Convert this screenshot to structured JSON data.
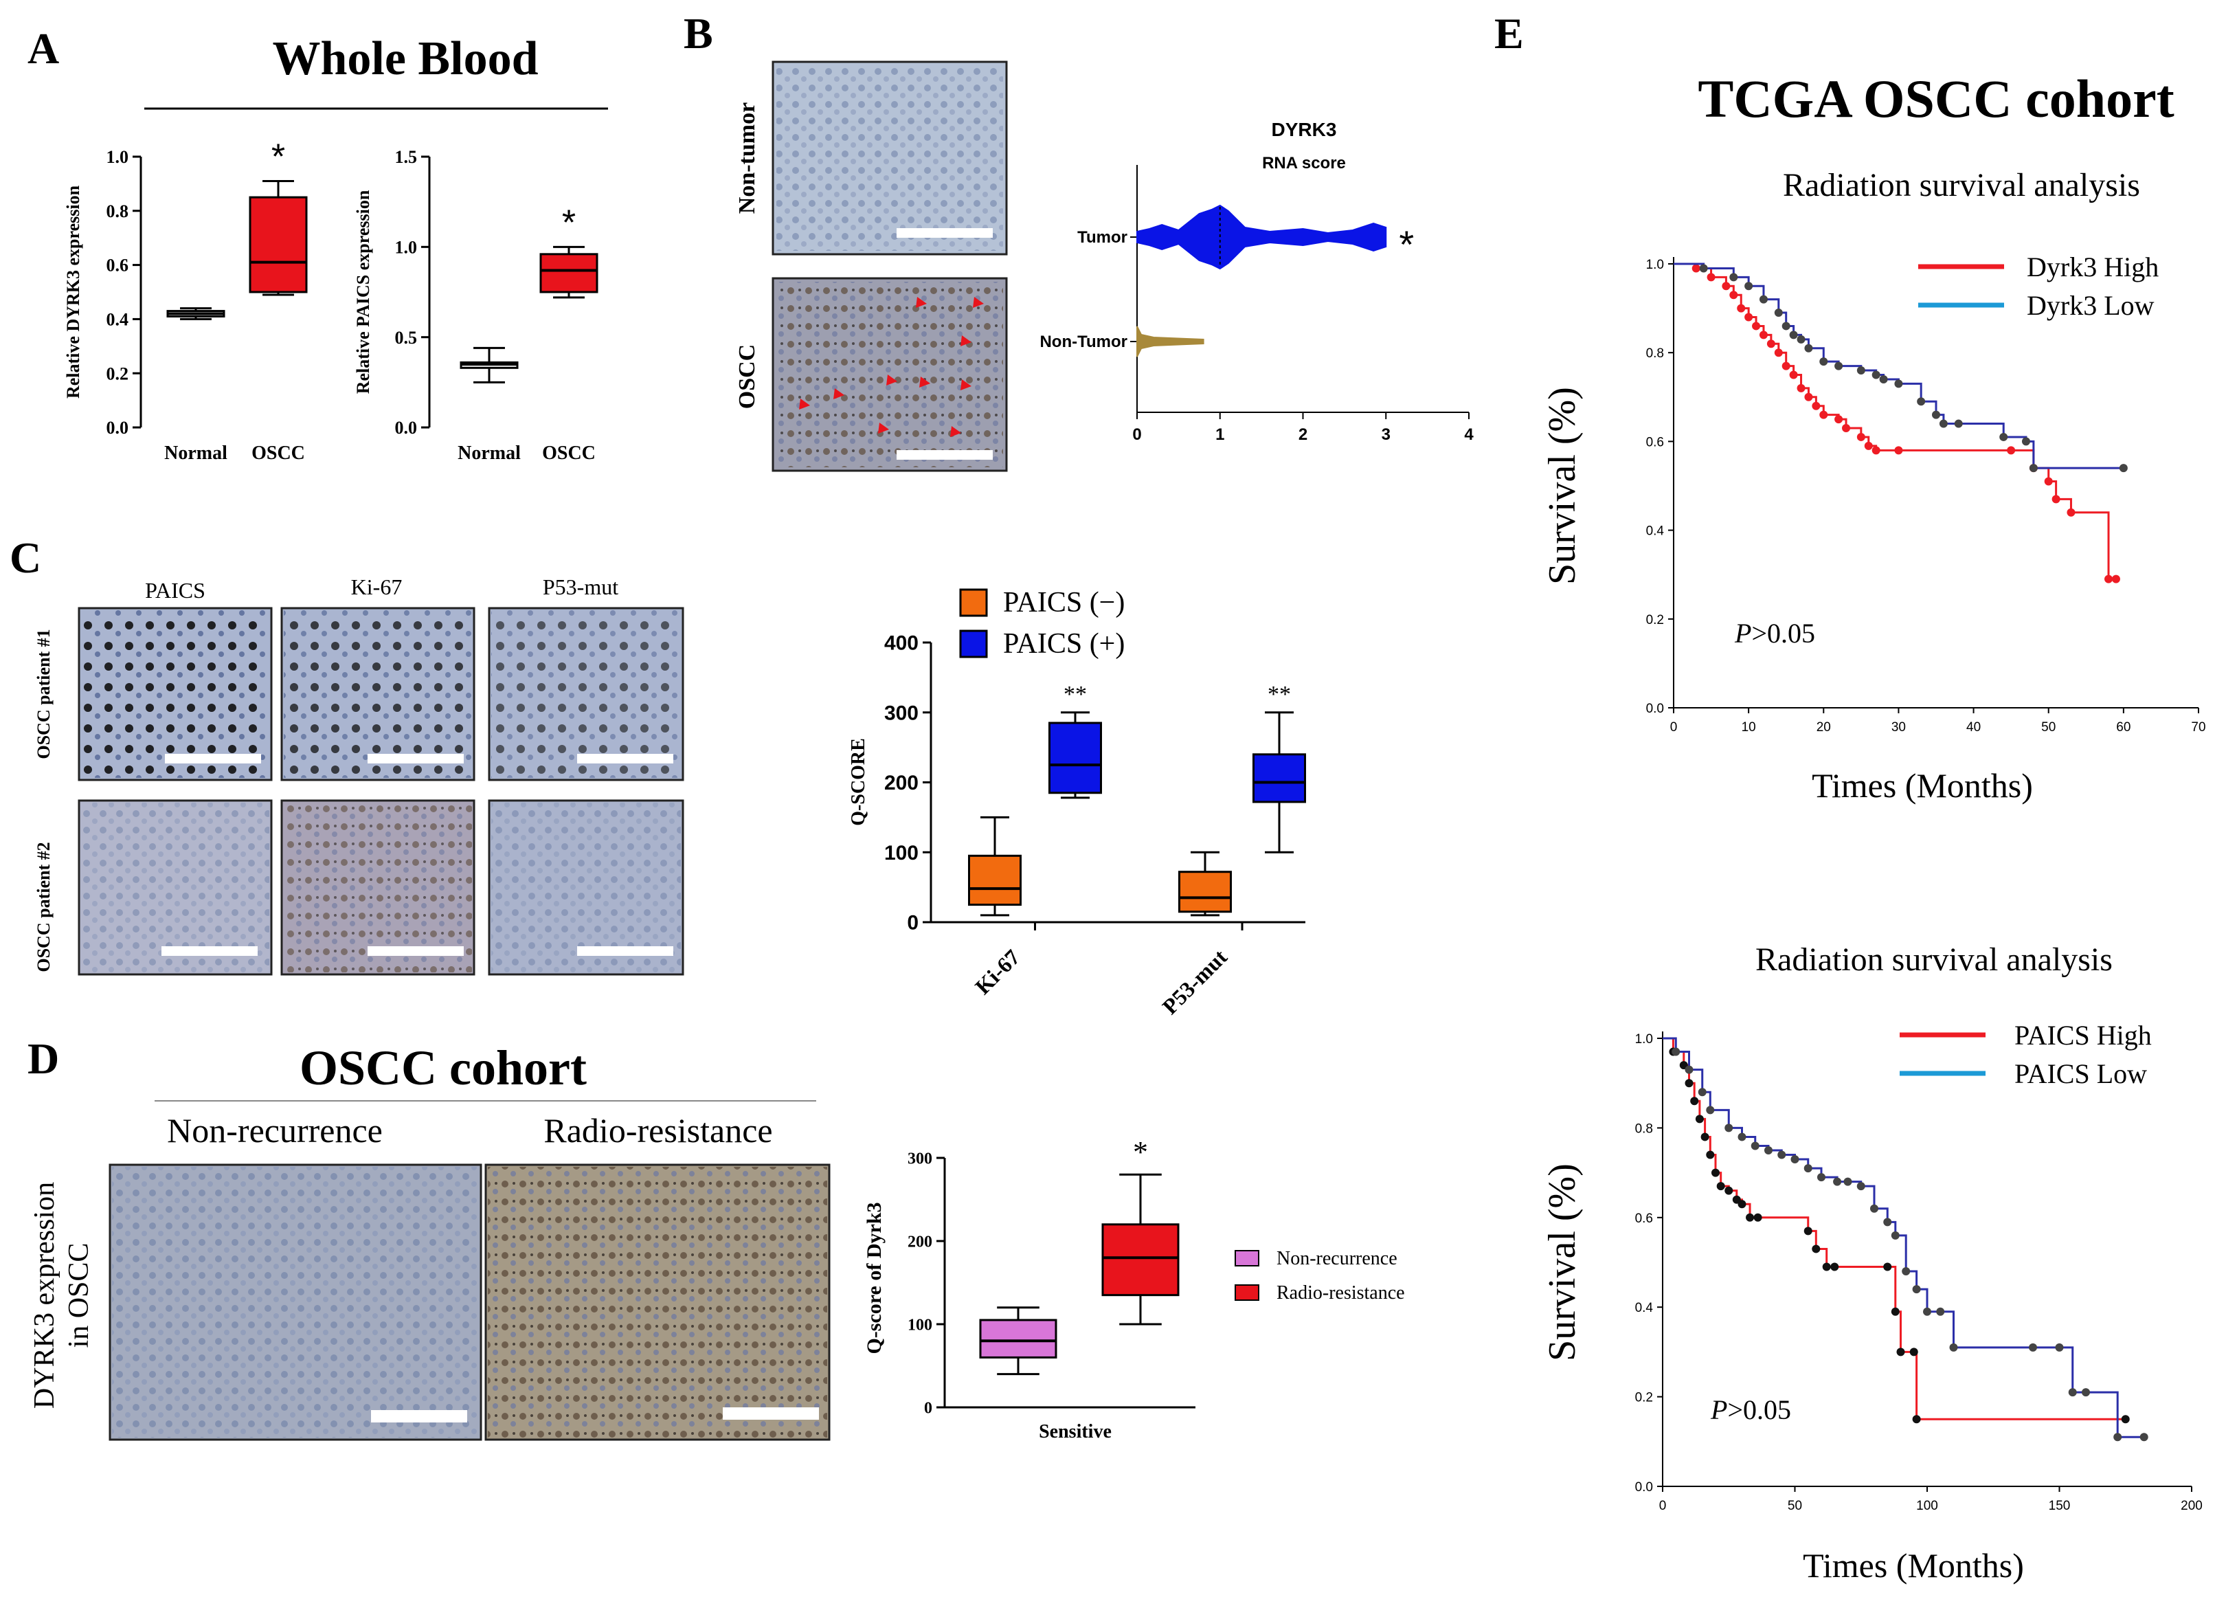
{
  "panels": {
    "A": {
      "letter": "A",
      "title": "Whole Blood"
    },
    "B": {
      "letter": "B",
      "row_labels": [
        "Non-tumor",
        "OSCC"
      ]
    },
    "C": {
      "letter": "C",
      "col_labels": [
        "PAICS",
        "Ki-67",
        "P53-mut"
      ],
      "row_labels": [
        "OSCC patient #1",
        "OSCC patient #2"
      ]
    },
    "D": {
      "letter": "D",
      "title": "OSCC cohort",
      "col_labels": [
        "Non-recurrence",
        "Radio-resistance"
      ],
      "side_label_1": "DYRK3 expression",
      "side_label_2": "in OSCC"
    },
    "E": {
      "letter": "E",
      "title": "TCGA OSCC cohort"
    }
  },
  "colors": {
    "red": "#e8141c",
    "blue": "#0a14e6",
    "orange": "#f26b0f",
    "olive": "#a8893a",
    "magenta": "#d876d8",
    "km_red": "#ee1c24",
    "km_blue": "#2b2fa8",
    "km_dark": "#444444"
  },
  "chart_data": [
    {
      "id": "A1",
      "type": "box",
      "title": "",
      "ylabel": "Relative DYRK3 expression",
      "ylim": [
        0,
        1.0
      ],
      "yticks": [
        "0.0",
        "0.2",
        "0.4",
        "0.6",
        "0.8",
        "1.0"
      ],
      "categories": [
        "Normal",
        "OSCC"
      ],
      "boxes": [
        {
          "min": 0.4,
          "q1": 0.41,
          "median": 0.42,
          "q3": 0.43,
          "max": 0.44,
          "fill": "none"
        },
        {
          "min": 0.49,
          "q1": 0.5,
          "median": 0.61,
          "q3": 0.85,
          "max": 0.91,
          "fill": "#e8141c"
        }
      ],
      "annotations": [
        "",
        "*"
      ]
    },
    {
      "id": "A2",
      "type": "box",
      "ylabel": "Relative PAICS expression",
      "ylim": [
        0,
        1.5
      ],
      "yticks": [
        "0.0",
        "0.5",
        "1.0",
        "1.5"
      ],
      "categories": [
        "Normal",
        "OSCC"
      ],
      "boxes": [
        {
          "min": 0.25,
          "q1": 0.33,
          "median": 0.35,
          "q3": 0.36,
          "max": 0.44,
          "fill": "none"
        },
        {
          "min": 0.72,
          "q1": 0.75,
          "median": 0.87,
          "q3": 0.96,
          "max": 1.0,
          "fill": "#e8141c"
        }
      ],
      "annotations": [
        "",
        "*"
      ]
    },
    {
      "id": "B",
      "type": "violin",
      "title": "DYRK3",
      "subtitle": "RNA score",
      "xlim": [
        0,
        4
      ],
      "xticks": [
        "0",
        "1",
        "2",
        "3",
        "4"
      ],
      "categories": [
        "Tumor",
        "Non-Tumor"
      ],
      "series": [
        {
          "name": "Tumor",
          "color": "#0a14e6",
          "range": [
            0,
            3
          ],
          "median": 1,
          "annotation": "*"
        },
        {
          "name": "Non-Tumor",
          "color": "#a8893a",
          "range": [
            0,
            0.8
          ],
          "median": 0
        }
      ]
    },
    {
      "id": "C",
      "type": "box",
      "ylabel": "Q-SCORE",
      "ylim": [
        0,
        400
      ],
      "yticks": [
        "0",
        "100",
        "200",
        "300",
        "400"
      ],
      "categories": [
        "Ki-67",
        "P53-mut"
      ],
      "legend": [
        "PAICS (−)",
        "PAICS (+)"
      ],
      "series": [
        {
          "name": "PAICS (−)",
          "color": "#f26b0f",
          "boxes": [
            {
              "min": 10,
              "q1": 25,
              "median": 48,
              "q3": 95,
              "max": 150
            },
            {
              "min": 10,
              "q1": 15,
              "median": 35,
              "q3": 72,
              "max": 100
            }
          ]
        },
        {
          "name": "PAICS (+)",
          "color": "#0a14e6",
          "boxes": [
            {
              "min": 178,
              "q1": 185,
              "median": 225,
              "q3": 285,
              "max": 300
            },
            {
              "min": 100,
              "q1": 172,
              "median": 200,
              "q3": 240,
              "max": 300
            }
          ]
        }
      ],
      "annotations": [
        "**",
        "**"
      ]
    },
    {
      "id": "D",
      "type": "box",
      "ylabel": "Q-score of Dyrk3",
      "xlabel": "Sensitive",
      "ylim": [
        0,
        300
      ],
      "yticks": [
        "0",
        "100",
        "200",
        "300"
      ],
      "legend": [
        "Non-recurrence",
        "Radio-resistance"
      ],
      "series": [
        {
          "name": "Non-recurrence",
          "color": "#d876d8",
          "box": {
            "min": 40,
            "q1": 60,
            "median": 80,
            "q3": 105,
            "max": 120
          }
        },
        {
          "name": "Radio-resistance",
          "color": "#e8141c",
          "box": {
            "min": 100,
            "q1": 135,
            "median": 180,
            "q3": 220,
            "max": 280
          }
        }
      ],
      "annotations": [
        "",
        "*"
      ]
    },
    {
      "id": "E1",
      "type": "line",
      "subtype": "kaplan-meier",
      "title": "Radiation survival analysis",
      "xlabel": "Times (Months)",
      "ylabel": "Survival (%)",
      "xlim": [
        0,
        70
      ],
      "ylim": [
        0,
        1.0
      ],
      "xticks": [
        "0",
        "10",
        "20",
        "30",
        "40",
        "50",
        "60",
        "70"
      ],
      "yticks": [
        "0.0",
        "0.2",
        "0.4",
        "0.6",
        "0.8",
        "1.0"
      ],
      "legend": [
        "Dyrk3 High",
        "Dyrk3 Low"
      ],
      "pvalue_p": "P",
      "pvalue_rest": ">0.05",
      "series": [
        {
          "name": "Dyrk3 High",
          "color": "#ee1c24",
          "x": [
            0,
            3,
            5,
            7,
            8,
            9,
            10,
            11,
            12,
            13,
            14,
            15,
            16,
            17,
            18,
            19,
            20,
            22,
            23,
            25,
            26,
            27,
            30,
            45,
            48,
            50,
            51,
            53,
            58,
            59
          ],
          "y": [
            1.0,
            0.99,
            0.97,
            0.95,
            0.93,
            0.9,
            0.88,
            0.86,
            0.84,
            0.82,
            0.8,
            0.77,
            0.75,
            0.72,
            0.7,
            0.68,
            0.66,
            0.65,
            0.63,
            0.61,
            0.59,
            0.58,
            0.58,
            0.58,
            0.54,
            0.51,
            0.47,
            0.44,
            0.29,
            0.29
          ]
        },
        {
          "name": "Dyrk3 Low",
          "color": "#2b2fa8",
          "x": [
            0,
            4,
            8,
            10,
            12,
            14,
            15,
            16,
            17,
            18,
            20,
            22,
            25,
            27,
            28,
            30,
            33,
            35,
            36,
            38,
            44,
            47,
            48,
            60
          ],
          "y": [
            1.0,
            0.99,
            0.97,
            0.95,
            0.92,
            0.89,
            0.86,
            0.84,
            0.83,
            0.81,
            0.78,
            0.77,
            0.76,
            0.75,
            0.74,
            0.73,
            0.69,
            0.66,
            0.64,
            0.64,
            0.61,
            0.6,
            0.54,
            0.54
          ]
        }
      ]
    },
    {
      "id": "E2",
      "type": "line",
      "subtype": "kaplan-meier",
      "title": "Radiation survival analysis",
      "xlabel": "Times (Months)",
      "ylabel": "Survival (%)",
      "xlim": [
        0,
        200
      ],
      "ylim": [
        0,
        1.0
      ],
      "xticks": [
        "0",
        "50",
        "100",
        "150",
        "200"
      ],
      "yticks": [
        "0.0",
        "0.2",
        "0.4",
        "0.6",
        "0.8",
        "1.0"
      ],
      "legend": [
        "PAICS High",
        "PAICS Low"
      ],
      "pvalue_p": "P",
      "pvalue_rest": ">0.05",
      "series": [
        {
          "name": "PAICS High",
          "color": "#ee1c24",
          "x": [
            0,
            4,
            8,
            10,
            12,
            14,
            16,
            18,
            20,
            22,
            25,
            28,
            30,
            33,
            36,
            55,
            58,
            62,
            65,
            85,
            88,
            90,
            95,
            96,
            175
          ],
          "y": [
            1.0,
            0.97,
            0.94,
            0.9,
            0.86,
            0.82,
            0.78,
            0.74,
            0.7,
            0.67,
            0.66,
            0.64,
            0.63,
            0.6,
            0.6,
            0.57,
            0.53,
            0.49,
            0.49,
            0.49,
            0.39,
            0.3,
            0.3,
            0.15,
            0.15
          ]
        },
        {
          "name": "PAICS Low",
          "color": "#2b2fa8",
          "x": [
            0,
            5,
            10,
            15,
            18,
            25,
            30,
            35,
            40,
            45,
            50,
            55,
            60,
            66,
            70,
            75,
            80,
            85,
            88,
            92,
            96,
            100,
            105,
            110,
            140,
            150,
            155,
            160,
            172,
            182
          ],
          "y": [
            1.0,
            0.97,
            0.93,
            0.88,
            0.84,
            0.8,
            0.78,
            0.76,
            0.75,
            0.74,
            0.73,
            0.71,
            0.69,
            0.68,
            0.68,
            0.67,
            0.62,
            0.59,
            0.56,
            0.48,
            0.44,
            0.39,
            0.39,
            0.31,
            0.31,
            0.31,
            0.21,
            0.21,
            0.11,
            0.11
          ]
        }
      ]
    }
  ]
}
